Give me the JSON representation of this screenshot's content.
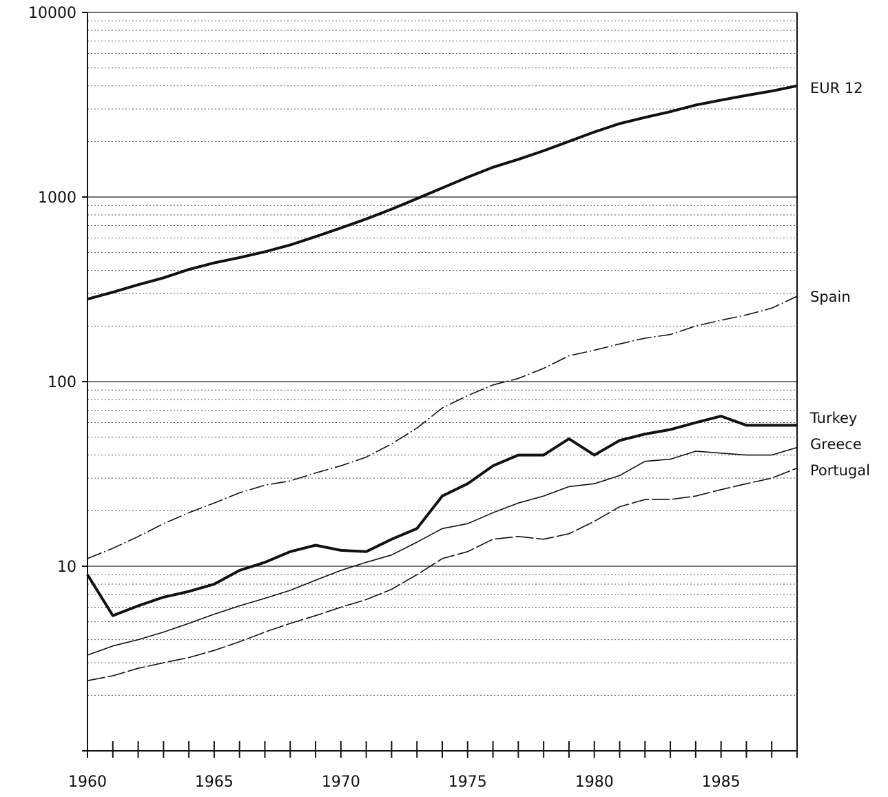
{
  "chart_data": {
    "type": "line",
    "title": "",
    "xlabel": "",
    "ylabel": "",
    "y_scale": "log",
    "ylim": [
      1,
      10000
    ],
    "xlim": [
      1960,
      1988
    ],
    "grid": true,
    "legend": "right-end labels",
    "x_ticks": [
      "1960",
      "1965",
      "1970",
      "1975",
      "1980",
      "1985"
    ],
    "y_ticks": [
      "10000",
      "1000",
      "100",
      "10"
    ],
    "x": [
      1960,
      1961,
      1962,
      1963,
      1964,
      1965,
      1966,
      1967,
      1968,
      1969,
      1970,
      1971,
      1972,
      1973,
      1974,
      1975,
      1976,
      1977,
      1978,
      1979,
      1980,
      1981,
      1982,
      1983,
      1984,
      1985,
      1986,
      1987,
      1988
    ],
    "series": [
      {
        "name": "EUR 12",
        "style": "bold",
        "values": [
          280,
          305,
          335,
          365,
          405,
          440,
          470,
          505,
          550,
          610,
          680,
          760,
          860,
          980,
          1120,
          1280,
          1450,
          1600,
          1780,
          2000,
          2250,
          2500,
          2700,
          2900,
          3150,
          3350,
          3550,
          3750,
          4000
        ]
      },
      {
        "name": "Spain",
        "style": "dashdot",
        "values": [
          11,
          12.5,
          14.5,
          17,
          19.5,
          22,
          25,
          27.5,
          29,
          32,
          35,
          39,
          46,
          56,
          72,
          84,
          96,
          104,
          118,
          138,
          148,
          160,
          172,
          180,
          200,
          215,
          230,
          250,
          290
        ]
      },
      {
        "name": "Turkey",
        "style": "bold",
        "values": [
          9,
          5.4,
          6.1,
          6.8,
          7.3,
          8,
          9.5,
          10.5,
          12,
          13,
          12.2,
          12,
          14,
          16,
          24,
          28,
          35,
          40,
          40,
          49,
          40,
          48,
          52,
          55,
          60,
          65,
          58,
          58,
          58
        ]
      },
      {
        "name": "Greece",
        "style": "solid",
        "values": [
          3.3,
          3.7,
          4,
          4.4,
          4.9,
          5.5,
          6.1,
          6.7,
          7.4,
          8.4,
          9.5,
          10.5,
          11.5,
          13.5,
          16,
          17,
          19.5,
          22,
          24,
          27,
          28,
          31,
          37,
          38,
          42,
          41,
          40,
          40,
          44
        ]
      },
      {
        "name": "Portugal",
        "style": "dashed",
        "values": [
          2.4,
          2.55,
          2.8,
          3,
          3.2,
          3.5,
          3.9,
          4.4,
          4.9,
          5.4,
          6,
          6.6,
          7.5,
          9,
          11,
          12,
          14,
          14.5,
          14,
          15,
          17.5,
          21,
          23,
          23,
          24,
          26,
          28,
          30,
          34
        ]
      }
    ]
  }
}
